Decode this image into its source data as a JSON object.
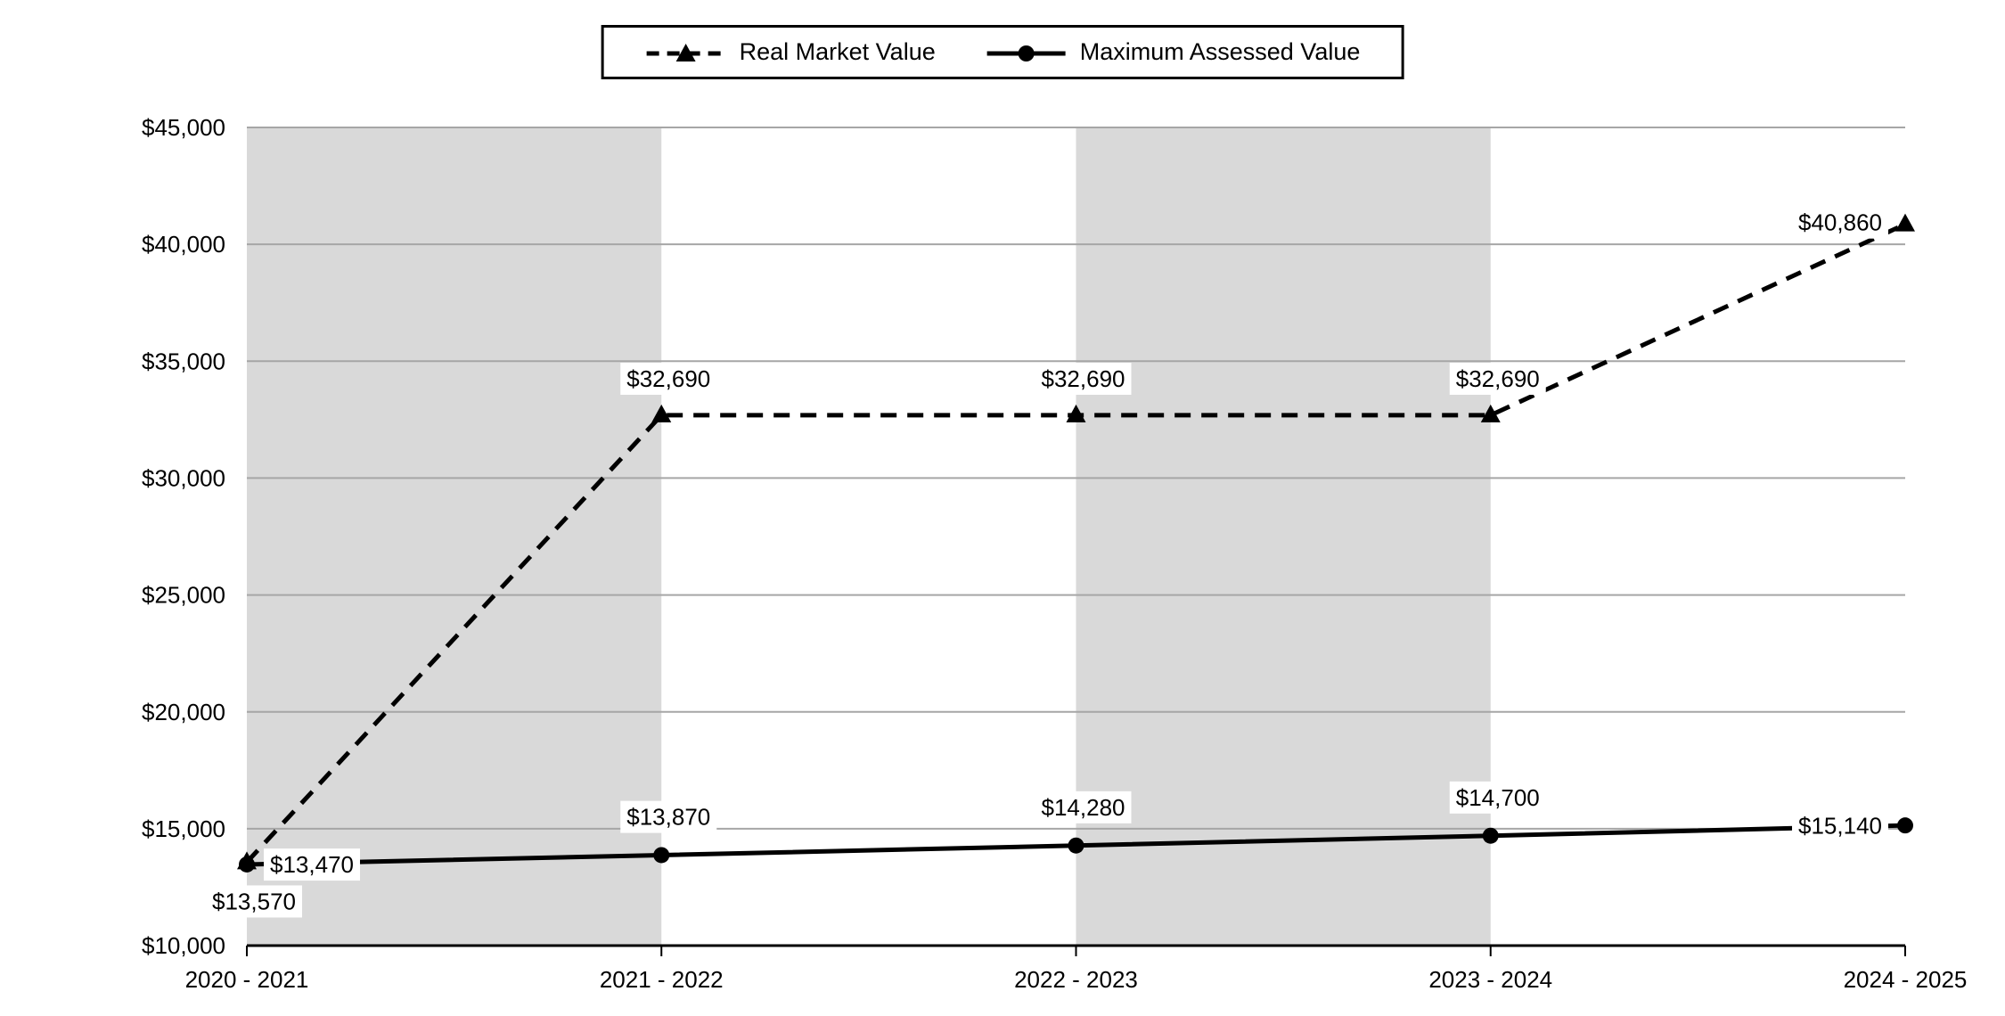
{
  "chart_data": {
    "type": "line",
    "title": "",
    "xlabel": "",
    "ylabel": "",
    "categories": [
      "2020 - 2021",
      "2021 - 2022",
      "2022 - 2023",
      "2023 - 2024",
      "2024 - 2025"
    ],
    "series": [
      {
        "name": "Real Market Value",
        "line_style": "dashed",
        "marker": "triangle",
        "values": [
          13570,
          32690,
          32690,
          32690,
          40860
        ],
        "point_labels": [
          {
            "text": "$13,570",
            "dx": 8,
            "dy": 44,
            "anchor": "middle"
          },
          {
            "text": "$32,690",
            "dx": 8,
            "dy": -41,
            "anchor": "middle"
          },
          {
            "text": "$32,690",
            "dx": 8,
            "dy": -41,
            "anchor": "middle"
          },
          {
            "text": "$32,690",
            "dx": 8,
            "dy": -41,
            "anchor": "middle"
          },
          {
            "text": "$40,860",
            "dx": -26,
            "dy": -2,
            "anchor": "end"
          }
        ]
      },
      {
        "name": "Maximum Assessed Value",
        "line_style": "solid",
        "marker": "circle",
        "values": [
          13470,
          13870,
          14280,
          14700,
          15140
        ],
        "point_labels": [
          {
            "text": "$13,470",
            "dx": 26,
            "dy": 0,
            "anchor": "start"
          },
          {
            "text": "$13,870",
            "dx": 8,
            "dy": -43,
            "anchor": "middle"
          },
          {
            "text": "$14,280",
            "dx": 8,
            "dy": -43,
            "anchor": "middle"
          },
          {
            "text": "$14,700",
            "dx": 8,
            "dy": -43,
            "anchor": "middle"
          },
          {
            "text": "$15,140",
            "dx": -26,
            "dy": 0,
            "anchor": "end"
          }
        ]
      }
    ],
    "ylim": [
      10000,
      45000
    ],
    "ytick_step": 5000,
    "ytick_labels": [
      "$10,000",
      "$15,000",
      "$20,000",
      "$25,000",
      "$30,000",
      "$35,000",
      "$40,000",
      "$45,000"
    ],
    "shaded_bands": [
      [
        0,
        1
      ],
      [
        2,
        3
      ]
    ],
    "grid": true,
    "legend_position": "top-center",
    "colors": {
      "line": "#000000",
      "band": "#d9d9d9",
      "grid": "#a6a6a6",
      "axis": "#000000",
      "background": "#ffffff",
      "label_bg": "#ffffff",
      "text": "#000000"
    }
  }
}
